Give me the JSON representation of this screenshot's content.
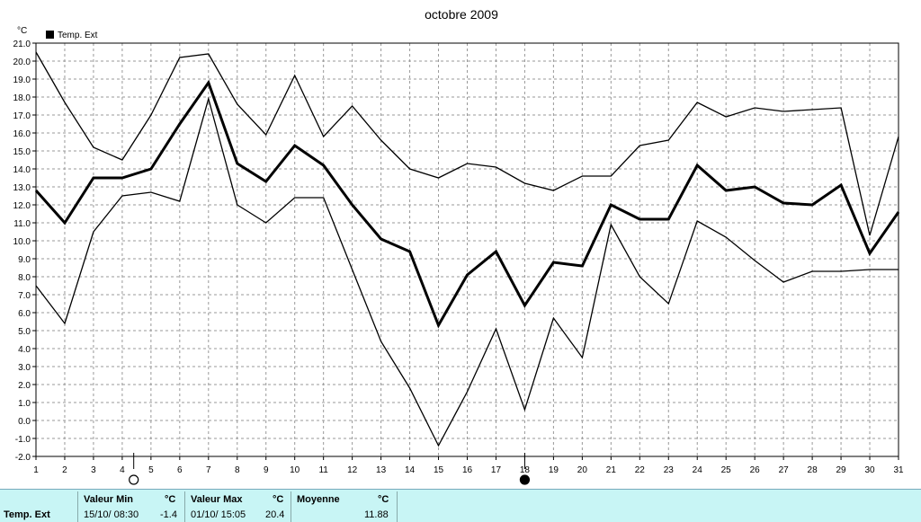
{
  "chart_data": {
    "type": "line",
    "title": "octobre 2009",
    "ylabel": "°C",
    "legend": "Temp. Ext",
    "legend_position": "top-left",
    "grid": true,
    "ylim": [
      -2.0,
      21.0
    ],
    "xlim": [
      1,
      31
    ],
    "x": [
      1,
      2,
      3,
      4,
      5,
      6,
      7,
      8,
      9,
      10,
      11,
      12,
      13,
      14,
      15,
      16,
      17,
      18,
      19,
      20,
      21,
      22,
      23,
      24,
      25,
      26,
      27,
      28,
      29,
      30,
      31
    ],
    "yticks": [
      "-2.0",
      "-1.0",
      "0.0",
      "1.0",
      "2.0",
      "3.0",
      "4.0",
      "5.0",
      "6.0",
      "7.0",
      "8.0",
      "9.0",
      "10.0",
      "11.0",
      "12.0",
      "13.0",
      "14.0",
      "15.0",
      "16.0",
      "17.0",
      "18.0",
      "19.0",
      "20.0",
      "21.0"
    ],
    "series": [
      {
        "values": [
          20.5,
          17.7,
          15.2,
          14.5,
          17.0,
          20.2,
          20.4,
          17.6,
          15.9,
          19.2,
          15.8,
          17.5,
          15.6,
          14.0,
          13.5,
          14.3,
          14.1,
          13.2,
          12.8,
          13.6,
          13.6,
          15.3,
          15.6,
          17.7,
          16.9,
          17.4,
          17.2,
          17.3,
          17.4,
          10.3,
          15.8
        ]
      },
      {
        "values": [
          12.8,
          11.0,
          13.5,
          13.5,
          14.0,
          16.5,
          18.8,
          14.3,
          13.3,
          15.3,
          14.2,
          12.0,
          10.1,
          9.4,
          5.3,
          8.1,
          9.4,
          6.4,
          8.8,
          8.6,
          12.0,
          11.2,
          11.2,
          14.2,
          12.8,
          13.0,
          12.1,
          12.0,
          13.1,
          9.3,
          11.6
        ],
        "bold": true
      },
      {
        "values": [
          7.5,
          5.4,
          10.5,
          12.5,
          12.7,
          12.2,
          17.9,
          12.0,
          11.0,
          12.4,
          12.4,
          8.4,
          4.4,
          1.8,
          -1.4,
          1.6,
          5.1,
          0.6,
          5.7,
          3.5,
          10.9,
          8.0,
          6.5,
          11.1,
          10.2,
          8.9,
          7.7,
          8.3,
          8.3,
          8.4,
          8.4
        ]
      }
    ],
    "markers": [
      {
        "x": 4.4,
        "symbol": "new-moon-outline"
      },
      {
        "x": 18.0,
        "symbol": "full-moon-filled"
      }
    ]
  },
  "stats": {
    "row_label": "Temp. Ext",
    "min_header": "Valeur Min",
    "min_unit": "°C",
    "min_date": "15/10/  08:30",
    "min_value": "-1.4",
    "max_header": "Valeur Max",
    "max_unit": "°C",
    "max_date": "01/10/  15:05",
    "max_value": "20.4",
    "avg_header": "Moyenne",
    "avg_unit": "°C",
    "avg_value": "11.88"
  }
}
